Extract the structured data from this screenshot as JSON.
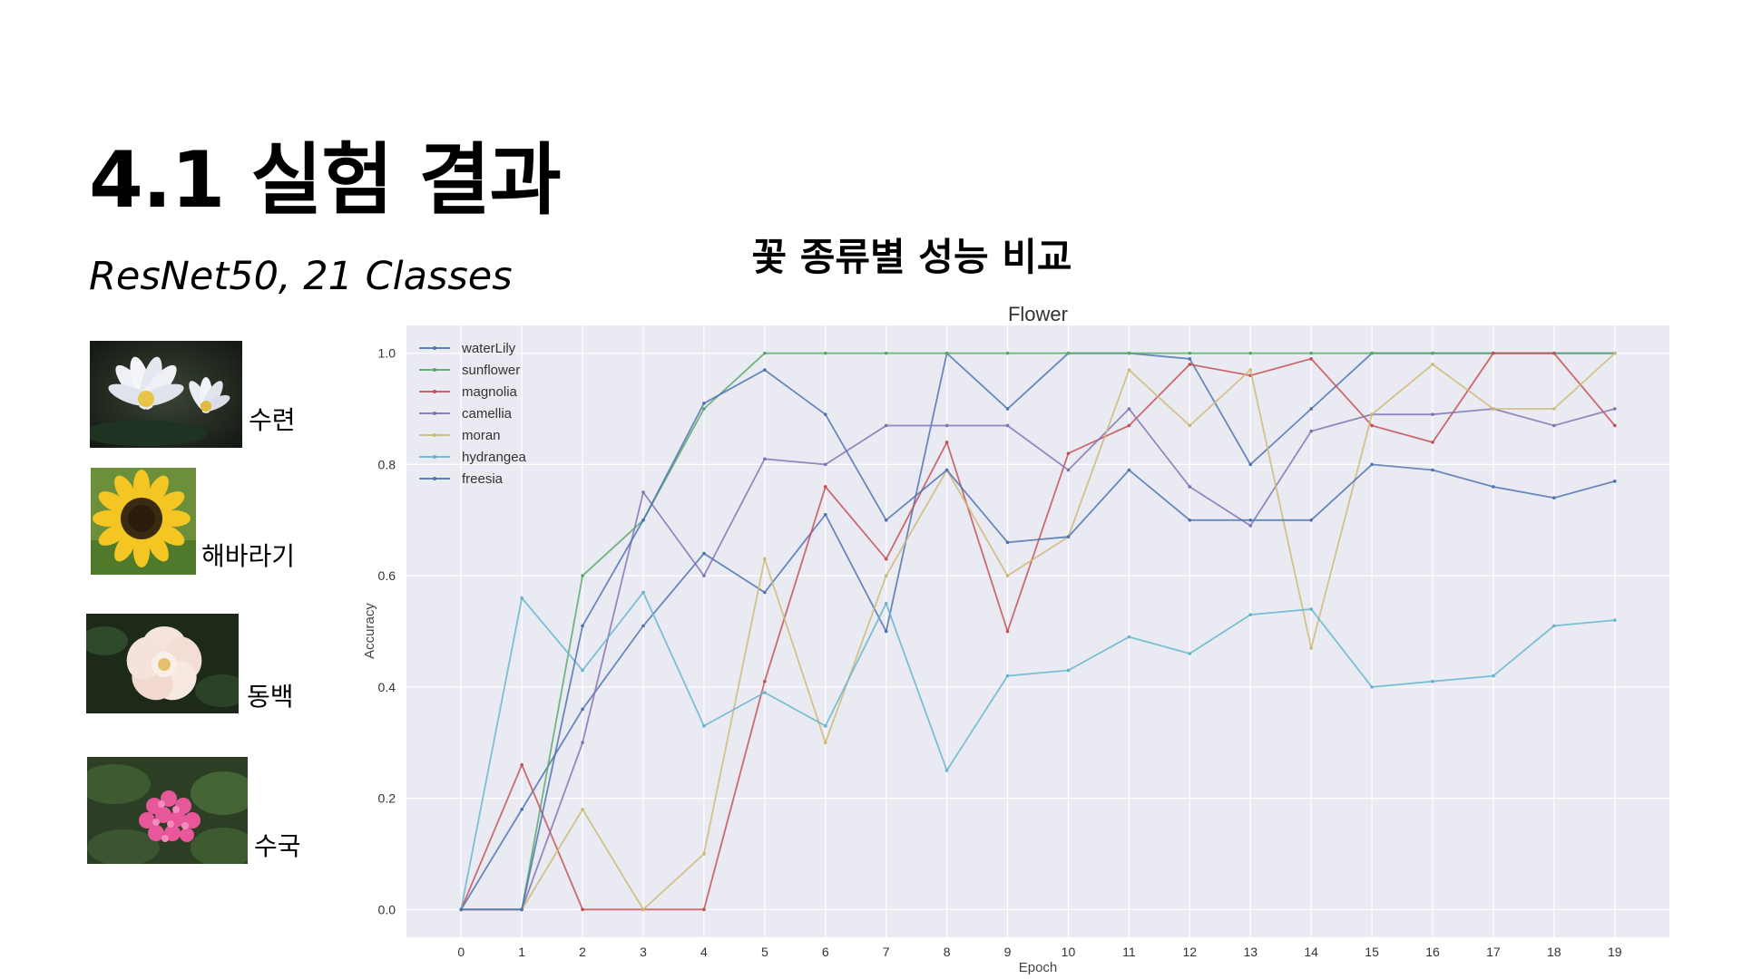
{
  "slide": {
    "title": "4.1 실험 결과",
    "subtitle": "ResNet50, 21 Classes",
    "chart_heading": "꽃 종류별 성능 비교"
  },
  "flowers": [
    {
      "label": "수련",
      "picture": "white water lily"
    },
    {
      "label": "해바라기",
      "picture": "sunflower"
    },
    {
      "label": "동백",
      "picture": "pale camellia"
    },
    {
      "label": "수국",
      "picture": "pink hydrangea"
    }
  ],
  "chart_data": {
    "type": "line",
    "title": "Flower",
    "xlabel": "Epoch",
    "ylabel": "Accuracy",
    "x": [
      0,
      1,
      2,
      3,
      4,
      5,
      6,
      7,
      8,
      9,
      10,
      11,
      12,
      13,
      14,
      15,
      16,
      17,
      18,
      19
    ],
    "xlim": [
      -0.9,
      19.9
    ],
    "ylim": [
      -0.05,
      1.05
    ],
    "yticks": [
      "0.0",
      "0.2",
      "0.4",
      "0.6",
      "0.8",
      "1.0"
    ],
    "grid": true,
    "legend_position": "top-left",
    "series": [
      {
        "name": "waterLily",
        "color": "#4c72b0",
        "values": [
          0,
          0.18,
          0.36,
          0.51,
          0.64,
          0.57,
          0.71,
          0.5,
          1.0,
          0.9,
          1.0,
          1.0,
          0.99,
          0.8,
          0.9,
          1.0,
          1.0,
          1.0,
          1.0,
          1.0
        ]
      },
      {
        "name": "sunflower",
        "color": "#55a868",
        "values": [
          0,
          0,
          0.6,
          0.7,
          0.9,
          1.0,
          1.0,
          1.0,
          1.0,
          1.0,
          1.0,
          1.0,
          1.0,
          1.0,
          1.0,
          1.0,
          1.0,
          1.0,
          1.0,
          1.0
        ]
      },
      {
        "name": "magnolia",
        "color": "#c44e52",
        "values": [
          0,
          0.26,
          0,
          0,
          0,
          0.41,
          0.76,
          0.63,
          0.84,
          0.5,
          0.82,
          0.87,
          0.98,
          0.96,
          0.99,
          0.87,
          0.84,
          1.0,
          1.0,
          0.87
        ]
      },
      {
        "name": "camellia",
        "color": "#8172b2",
        "values": [
          0,
          0,
          0.3,
          0.75,
          0.6,
          0.81,
          0.8,
          0.87,
          0.87,
          0.87,
          0.79,
          0.9,
          0.76,
          0.69,
          0.86,
          0.89,
          0.89,
          0.9,
          0.87,
          0.9
        ]
      },
      {
        "name": "moran",
        "color": "#ccb974",
        "values": [
          0,
          0,
          0.18,
          0,
          0.1,
          0.63,
          0.3,
          0.6,
          0.79,
          0.6,
          0.67,
          0.97,
          0.87,
          0.97,
          0.47,
          0.89,
          0.98,
          0.9,
          0.9,
          1.0
        ]
      },
      {
        "name": "hydrangea",
        "color": "#64b5cd",
        "values": [
          0,
          0.56,
          0.43,
          0.57,
          0.33,
          0.39,
          0.33,
          0.55,
          0.25,
          0.42,
          0.43,
          0.49,
          0.46,
          0.53,
          0.54,
          0.4,
          0.41,
          0.42,
          0.51,
          0.52
        ]
      },
      {
        "name": "freesia",
        "color": "#4c72b0",
        "values": [
          0,
          0,
          0.51,
          0.7,
          0.91,
          0.97,
          0.89,
          0.7,
          0.79,
          0.66,
          0.67,
          0.79,
          0.7,
          0.7,
          0.7,
          0.8,
          0.79,
          0.76,
          0.74,
          0.77
        ]
      }
    ]
  }
}
